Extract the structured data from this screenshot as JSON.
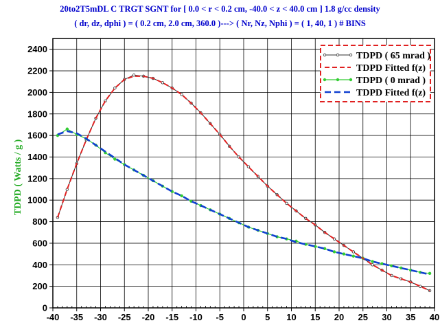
{
  "title_line1": "20to2T5mDL  C  TRGT  SGNT  for  [ 0.0 < r < 0.2 cm,  -40.0 < z < 40.0 cm ]  1.8 g/cc density",
  "title_line2": "( dr, dz, dphi ) = ( 0.2 cm, 2.0 cm, 360.0 )---> ( Nr, Nz, Nphi ) = ( 1, 40, 1 ) # BINS",
  "ylabel": "TDPD  ( Watts / g )",
  "colors": {
    "data65": "#303030",
    "fit65": "#e02020",
    "data0": "#33cc33",
    "fit0": "#1040d0",
    "legend_border": "#e02020",
    "title": "#0000cc",
    "ylabel": "#22aa22"
  },
  "chart_data": {
    "type": "line",
    "xlim": [
      -40,
      40
    ],
    "ylim": [
      0,
      2500
    ],
    "xticks": [
      -40,
      -35,
      -30,
      -25,
      -20,
      -15,
      -10,
      -5,
      0,
      5,
      10,
      15,
      20,
      25,
      30,
      35,
      40
    ],
    "yticks": [
      0,
      200,
      400,
      600,
      800,
      1000,
      1200,
      1400,
      1600,
      1800,
      2000,
      2200,
      2400
    ],
    "grid": true,
    "legend_position": "top-right",
    "series": [
      {
        "name": "TDPD ( 65 mrad )",
        "style": "line-markers",
        "x": [
          -39,
          -37,
          -35,
          -33,
          -31,
          -29,
          -27,
          -25,
          -23,
          -21,
          -19,
          -17,
          -15,
          -13,
          -11,
          -9,
          -7,
          -5,
          -3,
          -1,
          1,
          3,
          5,
          7,
          9,
          11,
          13,
          15,
          17,
          19,
          21,
          23,
          25,
          27,
          29,
          31,
          33,
          35,
          37,
          39
        ],
        "y": [
          840,
          1100,
          1340,
          1560,
          1760,
          1920,
          2040,
          2120,
          2160,
          2150,
          2130,
          2090,
          2040,
          1980,
          1900,
          1810,
          1710,
          1610,
          1500,
          1400,
          1310,
          1220,
          1130,
          1050,
          970,
          900,
          830,
          770,
          700,
          640,
          580,
          520,
          460,
          400,
          350,
          300,
          270,
          240,
          200,
          160
        ]
      },
      {
        "name": "TDPD Fitted f(z)",
        "style": "dashed",
        "x": [
          -39,
          -37,
          -35,
          -33,
          -31,
          -29,
          -27,
          -25,
          -23,
          -21,
          -19,
          -17,
          -15,
          -13,
          -11,
          -9,
          -7,
          -5,
          -3,
          -1,
          1,
          3,
          5,
          7,
          9,
          11,
          13,
          15,
          17,
          19,
          21,
          23,
          25,
          27,
          29,
          31,
          33,
          35,
          37,
          39
        ],
        "y": [
          840,
          1100,
          1340,
          1560,
          1760,
          1920,
          2040,
          2120,
          2150,
          2150,
          2130,
          2090,
          2040,
          1980,
          1900,
          1810,
          1710,
          1610,
          1500,
          1400,
          1310,
          1220,
          1130,
          1050,
          970,
          900,
          830,
          770,
          700,
          640,
          580,
          520,
          460,
          400,
          350,
          300,
          270,
          240,
          200,
          160
        ]
      },
      {
        "name": "TDPD ( 0 mrad )",
        "style": "line-markers",
        "x": [
          -39,
          -37,
          -35,
          -33,
          -31,
          -29,
          -27,
          -25,
          -23,
          -21,
          -19,
          -17,
          -15,
          -13,
          -11,
          -9,
          -7,
          -5,
          -3,
          -1,
          1,
          3,
          5,
          7,
          9,
          11,
          13,
          15,
          17,
          19,
          21,
          23,
          25,
          27,
          29,
          31,
          33,
          35,
          37,
          39
        ],
        "y": [
          1600,
          1660,
          1610,
          1570,
          1510,
          1440,
          1380,
          1330,
          1280,
          1230,
          1180,
          1130,
          1080,
          1040,
          990,
          950,
          910,
          870,
          830,
          790,
          750,
          720,
          690,
          660,
          640,
          620,
          590,
          570,
          550,
          520,
          500,
          480,
          460,
          430,
          410,
          390,
          370,
          350,
          330,
          320
        ]
      },
      {
        "name": "TDPD Fitted f(z)",
        "style": "dashed",
        "x": [
          -39,
          -37,
          -35,
          -33,
          -31,
          -29,
          -27,
          -25,
          -23,
          -21,
          -19,
          -17,
          -15,
          -13,
          -11,
          -9,
          -7,
          -5,
          -3,
          -1,
          1,
          3,
          5,
          7,
          9,
          11,
          13,
          15,
          17,
          19,
          21,
          23,
          25,
          27,
          29,
          31,
          33,
          35,
          37,
          39
        ],
        "y": [
          1610,
          1640,
          1620,
          1570,
          1510,
          1450,
          1390,
          1330,
          1280,
          1230,
          1180,
          1130,
          1080,
          1040,
          990,
          950,
          910,
          870,
          830,
          790,
          750,
          720,
          690,
          660,
          640,
          610,
          590,
          570,
          550,
          520,
          500,
          480,
          460,
          430,
          410,
          390,
          370,
          350,
          330,
          310
        ]
      }
    ]
  }
}
